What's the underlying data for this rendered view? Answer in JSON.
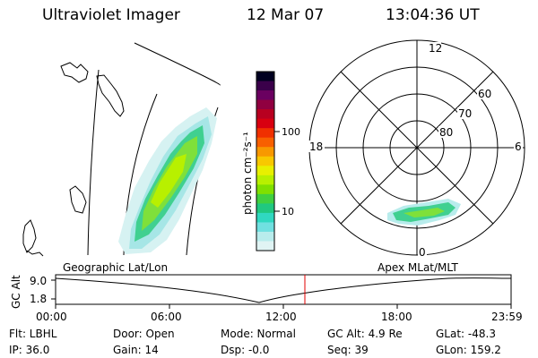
{
  "header": {
    "title": "Ultraviolet Imager",
    "date": "12 Mar 07",
    "time": "13:04:36 UT"
  },
  "geo_panel": {
    "label": "Geographic Lat/Lon"
  },
  "colorbar": {
    "unit_label": "photon cm⁻²s⁻¹",
    "ticks": [
      "100",
      "10"
    ],
    "colors": [
      "#000020",
      "#3a004a",
      "#6a0060",
      "#900040",
      "#b80020",
      "#d80010",
      "#f03000",
      "#f86000",
      "#f89800",
      "#f8c800",
      "#e8f000",
      "#b8f000",
      "#80e000",
      "#40d040",
      "#20c880",
      "#30d8c0",
      "#70e0e0",
      "#b8ecec",
      "#e0f4f4"
    ]
  },
  "polar_panel": {
    "label": "Apex MLat/MLT",
    "mlt_labels": [
      "12",
      "18",
      "6",
      "0"
    ],
    "mlat_labels": [
      "60",
      "70",
      "80"
    ]
  },
  "timeline": {
    "y_title": "GC Alt",
    "y_ticks": [
      "9.0",
      "1.8"
    ],
    "x_ticks": [
      "00:00",
      "06:00",
      "12:00",
      "18:00",
      "23:59"
    ],
    "current_marker_color": "#e00000"
  },
  "info": {
    "flt": "Flt: LBHL",
    "door": "Door: Open",
    "mode": "Mode: Normal",
    "gc_alt": "GC Alt: 4.9 Re",
    "glat": "GLat: -48.3",
    "ip": "IP: 36.0",
    "gain": "Gain: 14",
    "dsp": "Dsp:   -0.0",
    "seq": "Seq: 39",
    "glon": "GLon: 159.2"
  }
}
